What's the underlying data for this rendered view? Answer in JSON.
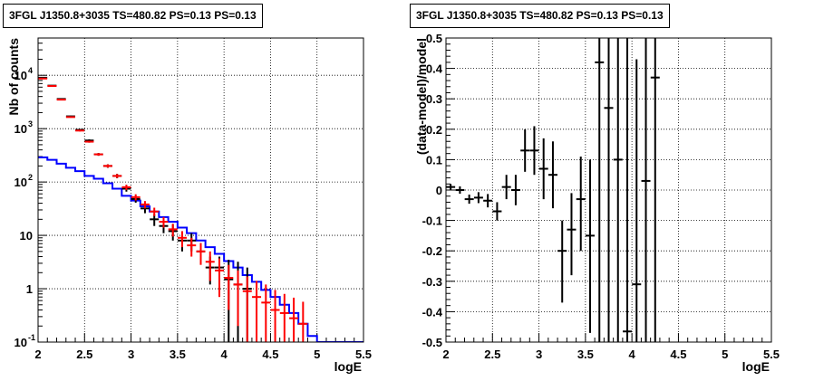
{
  "chart_data": [
    {
      "type": "scatter",
      "title": "3FGL J1350.8+3035 TS=480.82 PS=0.13 PS=0.13",
      "xlabel": "logE",
      "ylabel": "Nb of counts",
      "xlim": [
        2,
        5.5
      ],
      "ylim": [
        0.1,
        50000
      ],
      "yscale": "log",
      "grid": true,
      "xticks": [
        "2",
        "2.5",
        "3",
        "3.5",
        "4",
        "4.5",
        "5",
        "5.5"
      ],
      "yticks": [
        {
          "value": 0.1,
          "label": "10",
          "exp": "-1"
        },
        {
          "value": 1,
          "label": "1",
          "exp": ""
        },
        {
          "value": 10,
          "label": "10",
          "exp": ""
        },
        {
          "value": 100,
          "label": "10",
          "exp": "2"
        },
        {
          "value": 1000,
          "label": "10",
          "exp": "3"
        },
        {
          "value": 10000,
          "label": "10",
          "exp": "4"
        }
      ],
      "series": [
        {
          "kind": "step",
          "color": "#0000ff",
          "x_edges": [
            2.0,
            2.1,
            2.2,
            2.3,
            2.4,
            2.5,
            2.6,
            2.7,
            2.8,
            2.9,
            3.0,
            3.1,
            3.2,
            3.3,
            3.4,
            3.5,
            3.6,
            3.7,
            3.8,
            3.9,
            4.0,
            4.1,
            4.2,
            4.3,
            4.4,
            4.5,
            4.6,
            4.7,
            4.8,
            4.9,
            5.0,
            5.1,
            5.2,
            5.3,
            5.4,
            5.5
          ],
          "values": [
            290,
            260,
            220,
            185,
            160,
            130,
            115,
            95,
            75,
            55,
            45,
            35,
            28,
            22,
            18,
            14,
            11,
            8,
            6,
            4.5,
            3.3,
            2.5,
            1.8,
            1.35,
            0.95,
            0.7,
            0.5,
            0.35,
            0.22,
            0.13,
            0.1,
            0.1,
            0.1,
            0.1,
            0.1
          ]
        },
        {
          "kind": "errorbar",
          "color": "#000000",
          "x": [
            2.05,
            2.15,
            2.25,
            2.35,
            2.45,
            2.55,
            2.65,
            2.75,
            2.85,
            2.95,
            3.05,
            3.15,
            3.25,
            3.35,
            3.45,
            3.55,
            3.65,
            3.75,
            3.85,
            3.95,
            4.05,
            4.15,
            4.25
          ],
          "y": [
            9000,
            6400,
            3600,
            1700,
            950,
            600,
            330,
            200,
            130,
            75,
            48,
            32,
            20,
            15,
            12,
            8,
            8,
            5,
            2.5,
            2.5,
            1.5,
            1.2,
            1
          ],
          "yerr_lo": [
            200,
            150,
            100,
            50,
            40,
            30,
            20,
            15,
            12,
            9,
            7,
            6,
            5,
            4,
            4,
            3,
            3,
            2,
            1.3,
            1.5,
            1.4,
            1.15,
            0.99
          ],
          "yerr_hi": [
            200,
            150,
            100,
            50,
            40,
            30,
            20,
            15,
            12,
            9,
            7,
            6,
            5,
            4,
            4,
            3,
            3,
            2,
            1.5,
            1.5,
            2,
            2,
            1.5
          ]
        },
        {
          "kind": "errorbar",
          "color": "#ff0000",
          "x": [
            2.05,
            2.15,
            2.25,
            2.35,
            2.45,
            2.55,
            2.65,
            2.75,
            2.85,
            2.95,
            3.05,
            3.15,
            3.25,
            3.35,
            3.45,
            3.55,
            3.65,
            3.75,
            3.85,
            3.95,
            4.05,
            4.15,
            4.25,
            4.35,
            4.45,
            4.55,
            4.65,
            4.75,
            4.85
          ],
          "y": [
            8700,
            6300,
            3500,
            1650,
            920,
            570,
            330,
            200,
            130,
            80,
            52,
            38,
            28,
            18,
            13,
            9,
            6.5,
            5,
            3.2,
            2.2,
            1.6,
            1.2,
            0.9,
            0.7,
            0.55,
            0.4,
            0.35,
            0.28,
            0.22
          ],
          "yerr_lo": [
            150,
            120,
            90,
            45,
            35,
            25,
            18,
            14,
            11,
            9,
            7,
            6,
            5,
            4,
            3.5,
            3,
            2.5,
            2.2,
            1.8,
            1.5,
            1.2,
            1.0,
            0.8,
            0.6,
            0.45,
            0.3,
            0.25,
            0.18,
            0.12
          ],
          "yerr_hi": [
            150,
            120,
            90,
            45,
            35,
            25,
            18,
            14,
            11,
            9,
            7,
            6,
            5,
            4,
            3.5,
            3,
            2.5,
            2.2,
            1.8,
            1.5,
            1.2,
            1.0,
            0.8,
            0.7,
            0.65,
            0.55,
            0.45,
            0.4,
            0.35
          ]
        }
      ]
    },
    {
      "type": "scatter",
      "title": "3FGL J1350.8+3035 TS=480.82 PS=0.13 PS=0.13",
      "xlabel": "logE",
      "ylabel": "(data-model)/model",
      "xlim": [
        2,
        5.5
      ],
      "ylim": [
        -0.5,
        0.5
      ],
      "yscale": "linear",
      "grid": true,
      "xticks": [
        "2",
        "2.5",
        "3",
        "3.5",
        "4",
        "4.5",
        "5",
        "5.5"
      ],
      "yticks": [
        "-0.5",
        "-0.4",
        "-0.3",
        "-0.2",
        "-0.1",
        "0",
        "0.1",
        "0.2",
        "0.3",
        "0.4",
        "0.5"
      ],
      "series": [
        {
          "kind": "errorbar",
          "color": "#000000",
          "x": [
            2.05,
            2.15,
            2.25,
            2.35,
            2.45,
            2.55,
            2.65,
            2.75,
            2.85,
            2.95,
            3.05,
            3.15,
            3.25,
            3.35,
            3.45,
            3.55,
            3.65,
            3.75,
            3.85,
            3.95,
            4.05,
            4.15,
            4.25
          ],
          "y": [
            0.01,
            0.0,
            -0.03,
            -0.025,
            -0.035,
            -0.07,
            0.01,
            0.0,
            0.13,
            0.13,
            0.07,
            0.05,
            -0.2,
            -0.13,
            -0.03,
            -0.15,
            0.42,
            0.27,
            0.1,
            -0.465,
            -0.31,
            0.03,
            0.37
          ],
          "yerr_lo": [
            0.01,
            0.012,
            0.015,
            0.018,
            0.022,
            0.03,
            0.04,
            0.05,
            0.07,
            0.08,
            0.1,
            0.11,
            0.17,
            0.15,
            0.17,
            0.32,
            0.92,
            0.77,
            0.6,
            0.035,
            0.19,
            0.53,
            0.87
          ],
          "yerr_hi": [
            0.01,
            0.012,
            0.015,
            0.018,
            0.022,
            0.03,
            0.04,
            0.05,
            0.07,
            0.08,
            0.1,
            0.11,
            0.1,
            0.12,
            0.14,
            0.25,
            0.08,
            0.23,
            0.4,
            0.965,
            0.74,
            0.47,
            0.13
          ]
        }
      ]
    }
  ]
}
